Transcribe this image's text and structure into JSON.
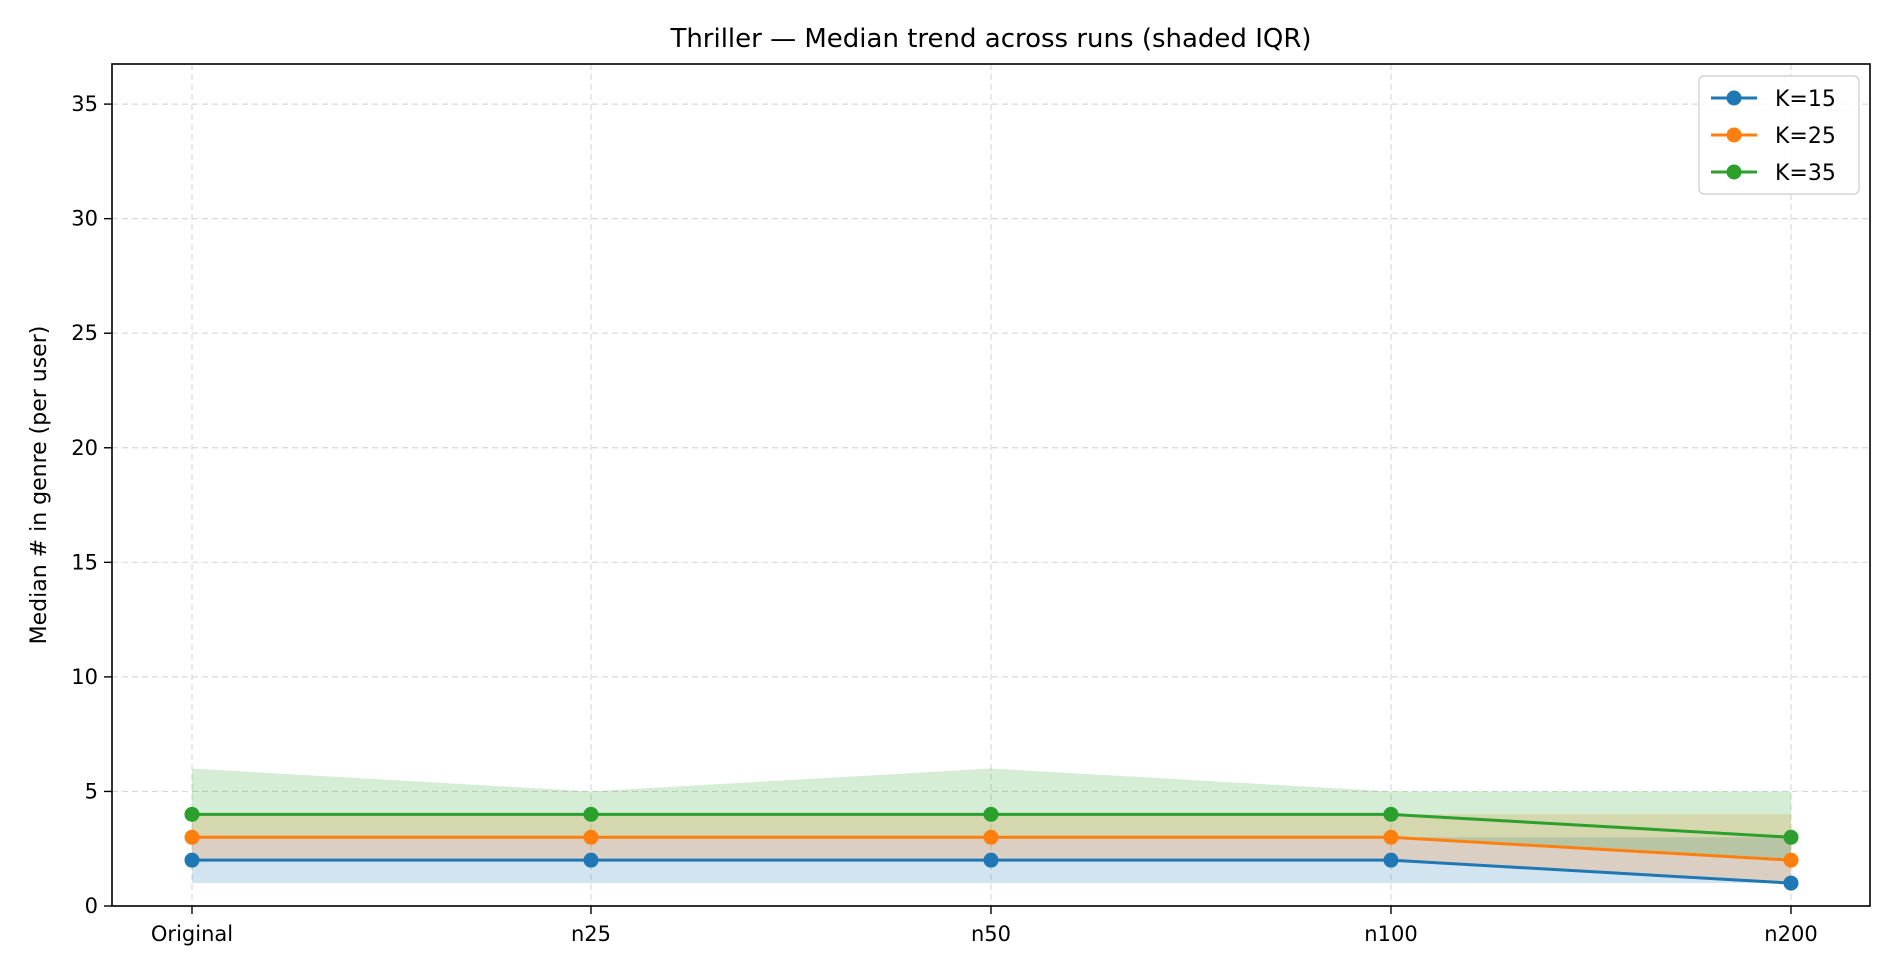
{
  "chart_data": {
    "type": "line",
    "title": "Thriller — Median trend across runs (shaded IQR)",
    "xlabel": "",
    "ylabel": "Median # in genre (per user)",
    "categories": [
      "Original",
      "n25",
      "n50",
      "n100",
      "n200"
    ],
    "yticks": [
      "0",
      "5",
      "10",
      "15",
      "20",
      "25",
      "30",
      "35"
    ],
    "ylim": [
      0,
      36.75
    ],
    "grid": true,
    "legend_position": "top-right",
    "series": [
      {
        "name": "K=15",
        "color": "#1f77b4",
        "values": [
          2,
          2,
          2,
          2,
          1
        ],
        "iqr_low": [
          1,
          1,
          1,
          1,
          1
        ],
        "iqr_high": [
          3,
          3,
          3,
          3,
          3
        ]
      },
      {
        "name": "K=25",
        "color": "#ff7f0e",
        "values": [
          3,
          3,
          3,
          3,
          2
        ],
        "iqr_low": [
          2,
          2,
          2,
          2,
          1
        ],
        "iqr_high": [
          4,
          4,
          4,
          4,
          4
        ]
      },
      {
        "name": "K=35",
        "color": "#2ca02c",
        "values": [
          4,
          4,
          4,
          4,
          3
        ],
        "iqr_low": [
          3,
          3,
          3,
          3,
          2
        ],
        "iqr_high": [
          6,
          5,
          6,
          5,
          5
        ]
      }
    ]
  }
}
